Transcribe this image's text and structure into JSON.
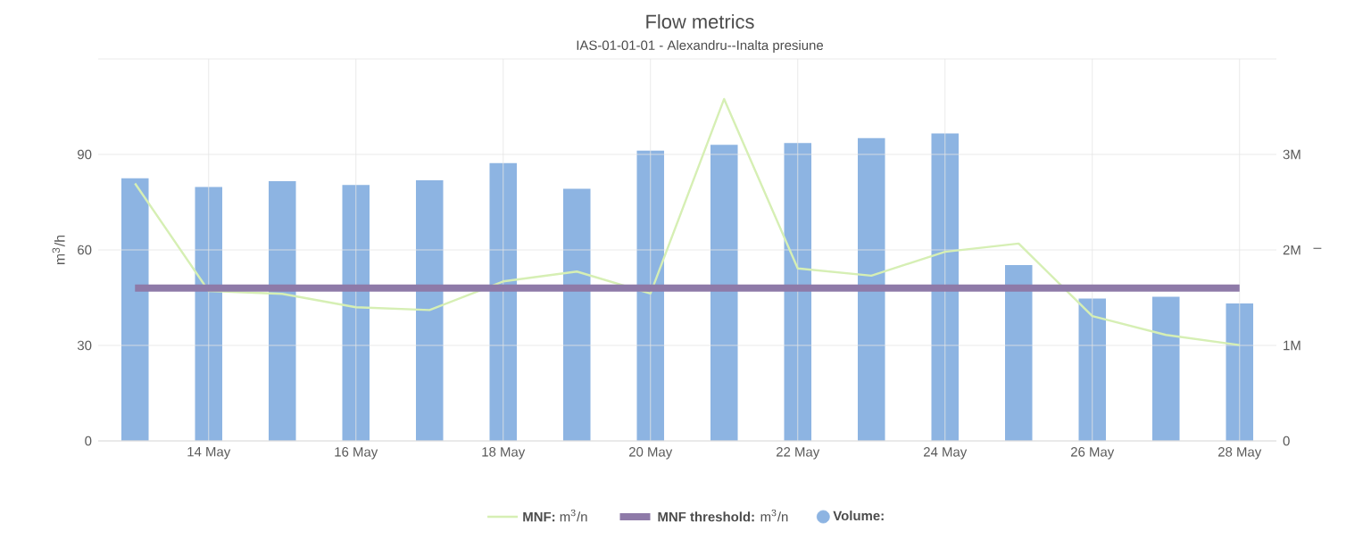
{
  "chart_data": {
    "type": "bar",
    "title": "Flow metrics",
    "subtitle": "IAS-01-01-01 - Alexandru--Inalta presiune",
    "ylabel": "m$^{3}$/h",
    "y2label": "–",
    "categories": [
      null,
      "14 May",
      null,
      "16 May",
      null,
      "18 May",
      null,
      "20 May",
      null,
      "22 May",
      null,
      "24 May",
      null,
      "26 May",
      null,
      "28 May"
    ],
    "series": [
      {
        "name": "**MNF:** m$^{3}$/n",
        "type": "line",
        "color": "#d6efb4",
        "values": [
          80.9,
          47.1,
          46.2,
          42.0,
          41.1,
          50.1,
          53.2,
          46.3,
          107.4,
          54.2,
          51.9,
          59.4,
          62.0,
          39.2,
          33.3,
          30.1
        ]
      },
      {
        "name": "**MNF threshold:** m$^{3}$/n",
        "type": "line",
        "color": "#8e7aa8",
        "values": [
          48,
          48,
          48,
          48,
          48,
          48,
          48,
          48,
          48,
          48,
          48,
          48,
          48,
          48,
          48,
          48
        ]
      },
      {
        "name": "**Volume:**",
        "axis": "y2",
        "color": "#8db4e2",
        "values": [
          2.75,
          2.66,
          2.72,
          2.68,
          2.73,
          2.91,
          2.64,
          3.04,
          3.1,
          3.12,
          3.17,
          3.22,
          1.84,
          1.49,
          1.51,
          1.44
        ]
      }
    ],
    "ylim": [
      0,
      120
    ],
    "yticks": [
      0,
      30,
      60,
      90,
      {
        "value": 120,
        "label": null
      }
    ],
    "y2lim": [
      0,
      4
    ],
    "y2ticks": [
      0,
      {
        "value": 1,
        "label": "1M"
      },
      {
        "value": 2,
        "label": "2M"
      },
      {
        "value": 3,
        "label": "3M"
      },
      {
        "value": 4,
        "label": null
      }
    ],
    "grid": true,
    "legend": "bottom"
  }
}
